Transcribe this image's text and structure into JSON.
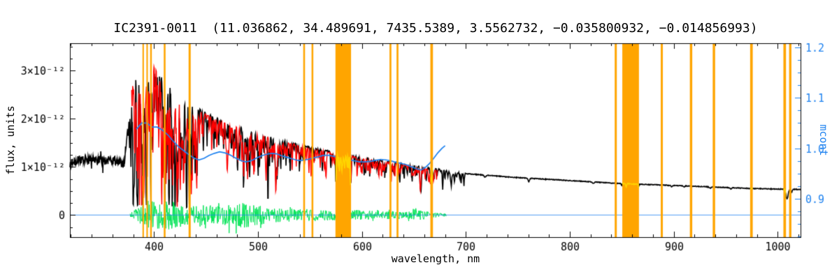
{
  "chart_data": {
    "type": "line",
    "title": "IC2391-0011  (11.036862, 34.489691, 7435.5389, 3.5562732, −0.035800932, −0.014856993)",
    "xlabel": "wavelength, nm",
    "ylabel_left": "flux, units",
    "ylabel_right": "mcont",
    "flux_unit_scale": "1e-12",
    "xlim": [
      319,
      1022
    ],
    "ylim_left": [
      -0.46,
      3.57
    ],
    "ylim_right": [
      0.824,
      1.208
    ],
    "x_ticks": [
      {
        "v": 400,
        "label": "400"
      },
      {
        "v": 500,
        "label": "500"
      },
      {
        "v": 600,
        "label": "600"
      },
      {
        "v": 700,
        "label": "700"
      },
      {
        "v": 800,
        "label": "800"
      },
      {
        "v": 900,
        "label": "900"
      },
      {
        "v": 1000,
        "label": "1000"
      }
    ],
    "x_minor_step": 20,
    "y_left_ticks": [
      {
        "v": 0,
        "label": "0"
      },
      {
        "v": 1,
        "label": "1×10⁻¹²"
      },
      {
        "v": 2,
        "label": "2×10⁻¹²"
      },
      {
        "v": 3,
        "label": "3×10⁻¹²"
      }
    ],
    "y_left_minor_step": 0.25,
    "y_right_ticks": [
      {
        "v": 0.9,
        "label": "0.9"
      },
      {
        "v": 1.0,
        "label": "1.0"
      },
      {
        "v": 1.1,
        "label": "1.1"
      },
      {
        "v": 1.2,
        "label": "1.2"
      }
    ],
    "y_right_minor_step": 0.025,
    "colors": {
      "background": "#ffffff",
      "frame": "#000000",
      "observed": "#000000",
      "model": "#ff0000",
      "residual": "#00e455",
      "continuum": "#1e82f0",
      "right_axis": "#1e82f0",
      "mask": "#ffa500",
      "masked_spectrum": "#ffd400"
    },
    "mask_bands_nm": [
      [
        388.8,
        390.2
      ],
      [
        392.6,
        394.0
      ],
      [
        396.2,
        397.8
      ],
      [
        409.3,
        411.0
      ],
      [
        433.2,
        435.2
      ],
      [
        543.5,
        545.2
      ],
      [
        551.5,
        553.2
      ],
      [
        574.5,
        589.5
      ],
      [
        626.5,
        628.3
      ],
      [
        633.3,
        635.1
      ],
      [
        665.8,
        668.3
      ],
      [
        843.2,
        845.2
      ],
      [
        850.5,
        866.5
      ],
      [
        887.5,
        889.5
      ],
      [
        915.5,
        917.8
      ],
      [
        937.5,
        939.8
      ],
      [
        973.5,
        976.0
      ],
      [
        1005.5,
        1008.0
      ],
      [
        1011.0,
        1013.2
      ]
    ],
    "observed": {
      "name": "observed-spectrum",
      "x_range": [
        319,
        1022
      ],
      "envelope_points": [
        [
          319,
          1.07
        ],
        [
          324,
          1.12
        ],
        [
          329,
          1.15
        ],
        [
          334,
          1.13
        ],
        [
          339,
          1.16
        ],
        [
          344,
          1.12
        ],
        [
          349,
          1.14
        ],
        [
          354,
          1.12
        ],
        [
          359,
          1.15
        ],
        [
          364,
          1.12
        ],
        [
          368,
          1.08
        ],
        [
          371,
          1.04
        ],
        [
          373,
          1.4
        ],
        [
          375,
          1.95
        ],
        [
          377,
          2.45
        ],
        [
          379,
          2.8
        ],
        [
          382,
          3.0
        ],
        [
          385,
          3.1
        ],
        [
          389,
          3.05
        ],
        [
          393,
          3.08
        ],
        [
          397,
          3.1
        ],
        [
          400,
          3.15
        ],
        [
          403,
          3.12
        ],
        [
          406,
          3.06
        ],
        [
          409,
          3.0
        ],
        [
          412,
          2.95
        ],
        [
          415,
          2.78
        ],
        [
          418,
          2.65
        ],
        [
          421,
          2.58
        ],
        [
          424,
          2.52
        ],
        [
          428,
          2.46
        ],
        [
          432,
          2.4
        ],
        [
          436,
          2.33
        ],
        [
          440,
          2.27
        ],
        [
          444,
          2.21
        ],
        [
          448,
          2.15
        ],
        [
          453,
          2.09
        ],
        [
          458,
          2.04
        ],
        [
          463,
          1.99
        ],
        [
          468,
          1.95
        ],
        [
          473,
          1.91
        ],
        [
          478,
          1.87
        ],
        [
          483,
          1.83
        ],
        [
          488,
          1.79
        ],
        [
          493,
          1.75
        ],
        [
          498,
          1.71
        ],
        [
          504,
          1.67
        ],
        [
          510,
          1.63
        ],
        [
          517,
          1.59
        ],
        [
          524,
          1.55
        ],
        [
          531,
          1.51
        ],
        [
          538,
          1.47
        ],
        [
          545,
          1.43
        ],
        [
          552,
          1.4
        ],
        [
          559,
          1.36
        ],
        [
          566,
          1.33
        ],
        [
          573,
          1.3
        ],
        [
          580,
          1.27
        ],
        [
          587,
          1.24
        ],
        [
          594,
          1.22
        ],
        [
          601,
          1.19
        ],
        [
          609,
          1.16
        ],
        [
          617,
          1.13
        ],
        [
          625,
          1.1
        ],
        [
          633,
          1.08
        ],
        [
          641,
          1.05
        ],
        [
          649,
          1.02
        ],
        [
          657,
          1.0
        ],
        [
          665,
          0.97
        ],
        [
          673,
          0.95
        ],
        [
          681,
          0.92
        ],
        [
          690,
          0.88
        ],
        [
          700,
          0.86
        ],
        [
          712,
          0.84
        ],
        [
          724,
          0.82
        ],
        [
          736,
          0.8
        ],
        [
          748,
          0.78
        ],
        [
          760,
          0.765
        ],
        [
          772,
          0.75
        ],
        [
          784,
          0.735
        ],
        [
          796,
          0.72
        ],
        [
          808,
          0.705
        ],
        [
          820,
          0.69
        ],
        [
          832,
          0.675
        ],
        [
          844,
          0.66
        ],
        [
          856,
          0.65
        ],
        [
          868,
          0.64
        ],
        [
          880,
          0.63
        ],
        [
          892,
          0.62
        ],
        [
          904,
          0.61
        ],
        [
          916,
          0.6
        ],
        [
          928,
          0.59
        ],
        [
          940,
          0.58
        ],
        [
          952,
          0.57
        ],
        [
          964,
          0.56
        ],
        [
          976,
          0.55
        ],
        [
          988,
          0.545
        ],
        [
          1000,
          0.54
        ],
        [
          1010,
          0.535
        ],
        [
          1022,
          0.53
        ]
      ]
    },
    "model": {
      "name": "model-fit-spectrum",
      "x_range": [
        378,
        673
      ],
      "scale": 0.985
    },
    "residual": {
      "name": "fit-residual",
      "x_range": [
        377,
        681
      ],
      "zero_level": 0,
      "amplitude_points": [
        [
          377,
          0.06
        ],
        [
          382,
          0.12
        ],
        [
          388,
          0.2
        ],
        [
          394,
          0.3
        ],
        [
          400,
          0.32
        ],
        [
          406,
          0.3
        ],
        [
          412,
          0.32
        ],
        [
          418,
          0.28
        ],
        [
          424,
          0.26
        ],
        [
          430,
          0.26
        ],
        [
          436,
          0.24
        ],
        [
          442,
          0.22
        ],
        [
          448,
          0.2
        ],
        [
          454,
          0.2
        ],
        [
          460,
          0.2
        ],
        [
          466,
          0.2
        ],
        [
          472,
          0.22
        ],
        [
          478,
          0.25
        ],
        [
          484,
          0.28
        ],
        [
          490,
          0.26
        ],
        [
          496,
          0.22
        ],
        [
          502,
          0.2
        ],
        [
          508,
          0.18
        ],
        [
          514,
          0.16
        ],
        [
          520,
          0.15
        ],
        [
          530,
          0.14
        ],
        [
          540,
          0.13
        ],
        [
          550,
          0.12
        ],
        [
          560,
          0.12
        ],
        [
          570,
          0.11
        ],
        [
          580,
          0.12
        ],
        [
          590,
          0.12
        ],
        [
          600,
          0.1
        ],
        [
          610,
          0.09
        ],
        [
          620,
          0.09
        ],
        [
          630,
          0.08
        ],
        [
          640,
          0.08
        ],
        [
          650,
          0.09
        ],
        [
          656,
          0.12
        ],
        [
          662,
          0.07
        ],
        [
          668,
          0.06
        ],
        [
          674,
          0.04
        ],
        [
          681,
          0.03
        ]
      ]
    },
    "continuum": {
      "name": "mcont-continuum-ratio",
      "axis": "right",
      "points": [
        [
          383,
          1.038
        ],
        [
          388,
          1.05
        ],
        [
          393,
          1.05
        ],
        [
          398,
          1.042
        ],
        [
          403,
          1.042
        ],
        [
          408,
          1.036
        ],
        [
          413,
          1.027
        ],
        [
          418,
          1.015
        ],
        [
          423,
          1.004
        ],
        [
          428,
          0.996
        ],
        [
          433,
          0.988
        ],
        [
          438,
          0.981
        ],
        [
          443,
          0.977
        ],
        [
          448,
          0.98
        ],
        [
          453,
          0.986
        ],
        [
          458,
          0.99
        ],
        [
          463,
          0.993
        ],
        [
          468,
          0.991
        ],
        [
          473,
          0.987
        ],
        [
          478,
          0.981
        ],
        [
          483,
          0.976
        ],
        [
          488,
          0.973
        ],
        [
          493,
          0.975
        ],
        [
          498,
          0.98
        ],
        [
          503,
          0.985
        ],
        [
          508,
          0.988
        ],
        [
          513,
          0.99
        ],
        [
          518,
          0.989
        ],
        [
          523,
          0.985
        ],
        [
          528,
          0.982
        ],
        [
          533,
          0.979
        ],
        [
          538,
          0.976
        ],
        [
          543,
          0.976
        ],
        [
          548,
          0.978
        ],
        [
          553,
          0.981
        ],
        [
          558,
          0.983
        ],
        [
          563,
          0.986
        ],
        [
          568,
          0.986
        ],
        [
          573,
          0.984
        ],
        [
          578,
          0.981
        ],
        [
          583,
          0.979
        ],
        [
          588,
          0.977
        ],
        [
          593,
          0.975
        ],
        [
          598,
          0.973
        ],
        [
          603,
          0.973
        ],
        [
          608,
          0.974
        ],
        [
          613,
          0.976
        ],
        [
          618,
          0.978
        ],
        [
          623,
          0.977
        ],
        [
          628,
          0.975
        ],
        [
          633,
          0.972
        ],
        [
          638,
          0.97
        ],
        [
          643,
          0.967
        ],
        [
          648,
          0.963
        ],
        [
          653,
          0.959
        ],
        [
          657,
          0.957
        ],
        [
          661,
          0.962
        ],
        [
          665,
          0.97
        ],
        [
          669,
          0.98
        ],
        [
          673,
          0.991
        ],
        [
          677,
          1.0
        ],
        [
          680,
          1.005
        ]
      ]
    },
    "zero_line": {
      "name": "zero-flux-line",
      "y": 0
    },
    "absorption_lines": [
      [
        383.5,
        0.45,
        0.5
      ],
      [
        386.0,
        0.3,
        0.4
      ],
      [
        388.9,
        0.5,
        0.6
      ],
      [
        393.4,
        0.5,
        0.6
      ],
      [
        396.8,
        0.52,
        0.6
      ],
      [
        404.6,
        0.25,
        0.4
      ],
      [
        410.2,
        0.45,
        0.7
      ],
      [
        414.4,
        0.2,
        0.4
      ],
      [
        417.0,
        0.18,
        0.4
      ],
      [
        420.2,
        0.15,
        0.35
      ],
      [
        422.7,
        0.3,
        0.5
      ],
      [
        427.2,
        0.2,
        0.4
      ],
      [
        430.8,
        0.28,
        0.5
      ],
      [
        434.0,
        0.52,
        0.7
      ],
      [
        438.4,
        0.3,
        0.5
      ],
      [
        440.5,
        0.2,
        0.4
      ],
      [
        447.2,
        0.18,
        0.4
      ],
      [
        453.1,
        0.15,
        0.4
      ],
      [
        455.4,
        0.18,
        0.35
      ],
      [
        458.7,
        0.12,
        0.35
      ],
      [
        462.0,
        0.12,
        0.35
      ],
      [
        466.8,
        0.15,
        0.4
      ],
      [
        470.3,
        0.12,
        0.35
      ],
      [
        476.3,
        0.14,
        0.4
      ],
      [
        481.0,
        0.12,
        0.35
      ],
      [
        486.1,
        0.5,
        0.7
      ],
      [
        489.1,
        0.18,
        0.4
      ],
      [
        492.4,
        0.15,
        0.4
      ],
      [
        495.7,
        0.12,
        0.35
      ],
      [
        501.8,
        0.2,
        0.4
      ],
      [
        508.0,
        0.15,
        0.4
      ],
      [
        511.0,
        0.12,
        0.35
      ],
      [
        516.7,
        0.3,
        0.5
      ],
      [
        517.3,
        0.3,
        0.5
      ],
      [
        518.4,
        0.28,
        0.5
      ],
      [
        522.7,
        0.15,
        0.4
      ],
      [
        526.9,
        0.18,
        0.4
      ],
      [
        532.8,
        0.15,
        0.4
      ],
      [
        537.1,
        0.14,
        0.4
      ],
      [
        539.7,
        0.12,
        0.35
      ],
      [
        544.7,
        0.12,
        0.35
      ],
      [
        552.8,
        0.12,
        0.35
      ],
      [
        558.8,
        0.1,
        0.35
      ],
      [
        563.6,
        0.1,
        0.35
      ],
      [
        570.0,
        0.08,
        0.35
      ],
      [
        576.0,
        0.08,
        0.35
      ],
      [
        585.7,
        0.1,
        0.35
      ],
      [
        589.0,
        0.35,
        0.45
      ],
      [
        589.6,
        0.3,
        0.45
      ],
      [
        597.0,
        0.08,
        0.35
      ],
      [
        610.3,
        0.1,
        0.35
      ],
      [
        612.2,
        0.1,
        0.35
      ],
      [
        616.2,
        0.12,
        0.4
      ],
      [
        623.1,
        0.1,
        0.35
      ],
      [
        630.2,
        0.08,
        0.35
      ],
      [
        643.9,
        0.1,
        0.35
      ],
      [
        649.5,
        0.1,
        0.35
      ],
      [
        653.0,
        0.08,
        0.35
      ],
      [
        656.3,
        0.45,
        0.8
      ],
      [
        660.8,
        0.08,
        0.35
      ],
      [
        667.0,
        0.08,
        0.35
      ]
    ],
    "telluric_dips": [
      [
        686.9,
        0.07,
        1.0
      ],
      [
        718.5,
        0.05,
        1.2
      ],
      [
        760.5,
        0.09,
        1.0
      ],
      [
        822.7,
        0.05,
        1.0
      ],
      [
        849.8,
        0.07,
        0.5
      ],
      [
        854.2,
        0.1,
        0.6
      ],
      [
        866.2,
        0.08,
        0.5
      ],
      [
        898.0,
        0.05,
        0.8
      ],
      [
        910.0,
        0.04,
        0.8
      ],
      [
        935.0,
        0.05,
        1.2
      ],
      [
        955.0,
        0.04,
        1.0
      ],
      [
        1009.0,
        0.38,
        1.4
      ],
      [
        1013.5,
        0.1,
        0.8
      ]
    ],
    "noise": {
      "seed": 1234,
      "blue_region_end": 372.5,
      "blue_noise": 0.09,
      "spec_noise": 0.015,
      "model_noise": 0.012,
      "weak_lines": [
        {
          "count": 300,
          "range": [
            375,
            700
          ],
          "depth": [
            0.02,
            0.2
          ],
          "width": [
            0.25,
            0.6
          ]
        },
        {
          "count": 120,
          "range": [
            376,
            442
          ],
          "depth": [
            0.05,
            0.4
          ],
          "width": [
            0.25,
            0.5
          ]
        },
        {
          "count": 60,
          "range": [
            468,
            522
          ],
          "depth": [
            0.04,
            0.25
          ],
          "width": [
            0.25,
            0.5
          ]
        }
      ]
    }
  }
}
